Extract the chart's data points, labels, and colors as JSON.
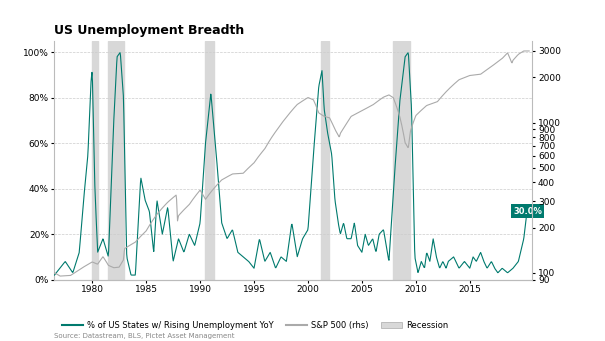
{
  "title": "US Unemployment Breadth",
  "source_text": "Source: Datastream, BLS, Pictet Asset Management",
  "legend": {
    "unemp_label": "% of US States w/ Rising Unemployment YoY",
    "sp500_label": "S&P 500 (rhs)",
    "recession_label": "Recession"
  },
  "recession_periods": [
    [
      1980.0,
      1980.5
    ],
    [
      1981.5,
      1982.92
    ],
    [
      1990.5,
      1991.25
    ],
    [
      2001.25,
      2001.92
    ],
    [
      2007.92,
      2009.5
    ]
  ],
  "unemp_color": "#007a6e",
  "sp500_color": "#aaaaaa",
  "recession_color": "#d8d8d8",
  "bg_color": "#ffffff",
  "annotation_text": "30.0%",
  "ylim_left": [
    0,
    105
  ],
  "yright_min": 90,
  "yright_max": 3500,
  "xlim": [
    1976.5,
    2020.8
  ],
  "yticks_left": [
    0,
    20,
    40,
    60,
    80,
    100
  ],
  "ytick_labels_right": [
    "90",
    "100",
    "200",
    "300",
    "400",
    "500",
    "600",
    "700",
    "800",
    "900",
    "1000",
    "2000",
    "3000"
  ],
  "yticks_right_vals": [
    90,
    100,
    200,
    300,
    400,
    500,
    600,
    700,
    800,
    900,
    1000,
    2000,
    3000
  ],
  "xticks": [
    1980,
    1985,
    1990,
    1995,
    2000,
    2005,
    2010,
    2015
  ],
  "grid_color": "#cccccc",
  "title_fontsize": 9,
  "tick_fontsize": 6.5
}
